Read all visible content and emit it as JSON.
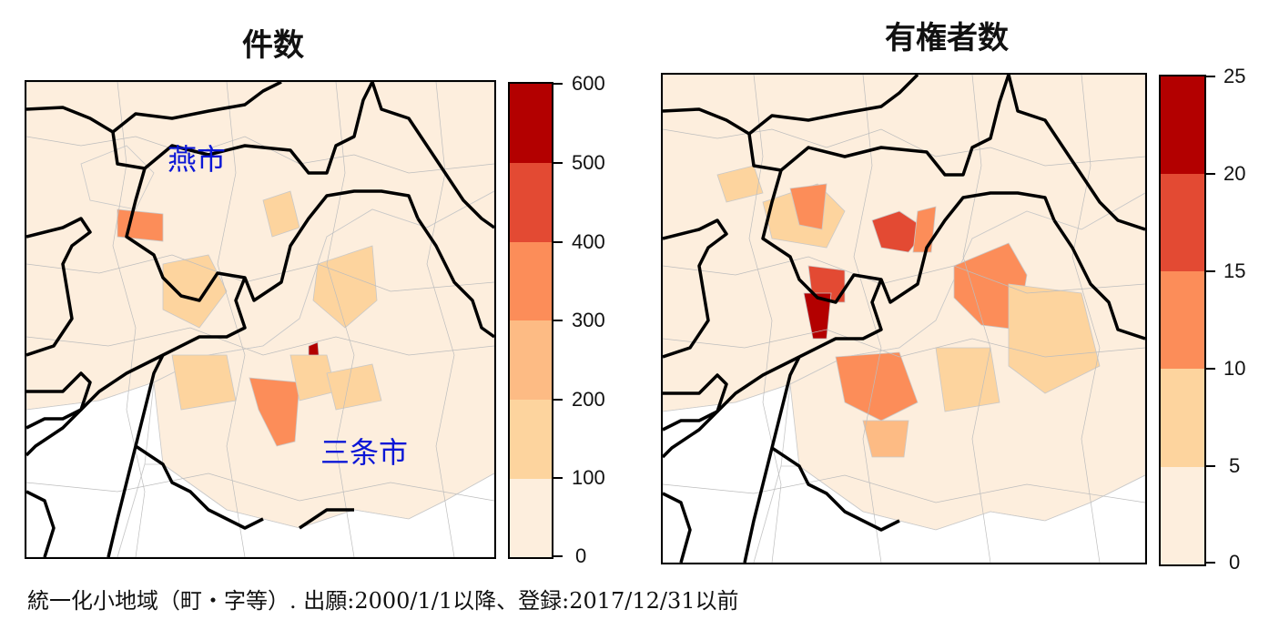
{
  "maps": {
    "left": {
      "title": "件数",
      "legend": {
        "ticks": [
          "0",
          "100",
          "200",
          "300",
          "400",
          "500",
          "600"
        ],
        "colors": [
          "#fdeedd",
          "#fdd49e",
          "#fdbb84",
          "#fc8d59",
          "#e34a33",
          "#b30000"
        ]
      },
      "city_labels": [
        "燕市",
        "三条市"
      ]
    },
    "right": {
      "title": "有権者数",
      "legend": {
        "ticks": [
          "0",
          "5",
          "10",
          "15",
          "20",
          "25"
        ],
        "colors": [
          "#fdeedd",
          "#fdd49e",
          "#fdbb84",
          "#fc8d59",
          "#e34a33",
          "#b30000"
        ]
      }
    }
  },
  "footnote": "統一化小地域（町・字等）. 出願:2000/1/1以降、登録:2017/12/31以前"
}
